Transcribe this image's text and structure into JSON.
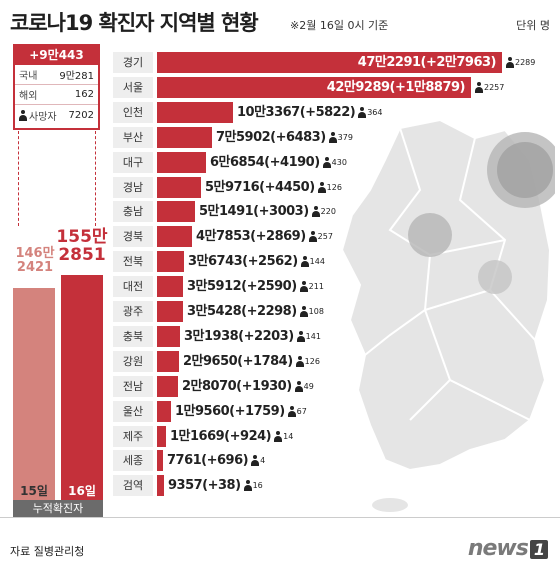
{
  "header": {
    "title": "코로나19 확진자 지역별 현황",
    "subtitle": "※2월 16일 0시 기준",
    "unit": "단위 명"
  },
  "summary": {
    "new_total": "+9만443",
    "rows": [
      {
        "label": "국내",
        "value": "9만281"
      },
      {
        "label": "해외",
        "value": "162"
      },
      {
        "label": "사망자",
        "value": "7202"
      }
    ]
  },
  "cumulative": {
    "label": "누적확진자",
    "days": [
      {
        "day": "15일",
        "line1": "146만",
        "line2": "2421",
        "value": 1462421
      },
      {
        "day": "16일",
        "line1": "155만",
        "line2": "2851",
        "value": 1552851
      }
    ]
  },
  "chart_data": {
    "type": "bar",
    "title": "코로나19 확진자 지역별 현황",
    "subtitle": "※2월 16일 0시 기준",
    "unit": "단위 명",
    "categories": [
      "경기",
      "서울",
      "인천",
      "부산",
      "대구",
      "경남",
      "충남",
      "경북",
      "전북",
      "대전",
      "광주",
      "충북",
      "강원",
      "전남",
      "울산",
      "제주",
      "세종",
      "검역"
    ],
    "series": [
      {
        "values": [
          472291,
          429289,
          103367,
          75902,
          66854,
          59716,
          51491,
          47853,
          36743,
          35912,
          35428,
          31938,
          29650,
          28070,
          19560,
          11669,
          7761,
          9357
        ],
        "labels": [
          "47만2291",
          "42만9289",
          "10만3367",
          "7만5902",
          "6만6854",
          "5만9716",
          "5만1491",
          "4만7853",
          "3만6743",
          "3만5912",
          "3만5428",
          "3만1938",
          "2만9650",
          "2만8070",
          "1만9560",
          "1만1669",
          "7761",
          "9357"
        ]
      }
    ],
    "daily_increase": [
      "+2만7963",
      "+1만8879",
      "+5822",
      "+6483",
      "+4190",
      "+4450",
      "+3003",
      "+2869",
      "+2562",
      "+2590",
      "+2298",
      "+2203",
      "+1784",
      "+1930",
      "+1759",
      "+924",
      "+696",
      "+38"
    ],
    "deaths": [
      2289,
      2257,
      364,
      379,
      430,
      126,
      220,
      257,
      144,
      211,
      108,
      141,
      126,
      49,
      67,
      14,
      4,
      16
    ],
    "colors": {
      "bar": "#c4303a",
      "label_bg": "#eeeeee",
      "prev_day": "#d4837d",
      "curr_day": "#c4303a"
    }
  },
  "footer": {
    "source": "자료 질병관리청",
    "logo": "news",
    "logo_mark": "1"
  }
}
